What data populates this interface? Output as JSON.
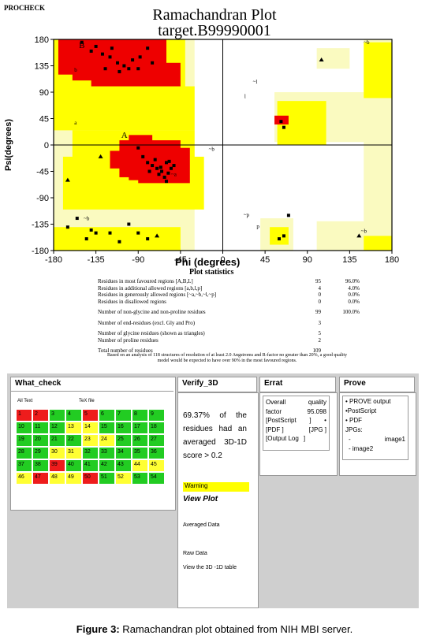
{
  "header": {
    "program": "PROCHECK",
    "title": "Ramachandran Plot",
    "subtitle": "target.B99990001"
  },
  "chart_data": {
    "type": "scatter",
    "title": "Ramachandran Plot",
    "subtitle": "target.B99990001",
    "xlabel": "Phi (degrees)",
    "ylabel": "Psi(degrees)",
    "xlim": [
      -180,
      180
    ],
    "ylim": [
      -180,
      180
    ],
    "xticks": [
      "-180",
      "-135",
      "-90",
      "-45",
      "0",
      "45",
      "90",
      "135",
      "180"
    ],
    "yticks": [
      "180",
      "135",
      "90",
      "45",
      "0",
      "-45",
      "-90",
      "-135",
      "-180"
    ],
    "colors": {
      "most_favoured": "#ee0000",
      "additional_allowed": "#ffff00",
      "generously_allowed": "#fafac0",
      "disallowed": "#ffffff",
      "points": "#000000"
    },
    "region_labels": [
      "B",
      "b",
      "a",
      "A",
      "~b",
      "~l",
      "l",
      "~a",
      "~p",
      "p",
      "~b",
      "~b",
      "~b"
    ],
    "regions": [
      {
        "type": "generous",
        "rects": [
          [
            -180,
            180,
            -30,
            -180
          ],
          [
            -180,
            180,
            -45,
            -165
          ],
          [
            55,
            90,
            160,
            5
          ],
          [
            40,
            -125,
            75,
            -180
          ],
          [
            150,
            180,
            180,
            -180
          ],
          [
            100,
            165,
            135,
            130
          ],
          [
            100,
            -130,
            180,
            -180
          ]
        ]
      },
      {
        "type": "allowed",
        "rects": [
          [
            -180,
            180,
            -40,
            90
          ],
          [
            -180,
            100,
            -30,
            25
          ],
          [
            -160,
            25,
            -30,
            -90
          ],
          [
            -170,
            -20,
            -20,
            -110
          ],
          [
            -180,
            -140,
            -45,
            -180
          ],
          [
            58,
            75,
            110,
            0
          ],
          [
            70,
            50,
            100,
            10
          ],
          [
            50,
            -140,
            70,
            -170
          ],
          [
            150,
            175,
            180,
            80
          ],
          [
            150,
            -155,
            180,
            -180
          ],
          [
            -180,
            -175,
            -45,
            -180
          ]
        ]
      },
      {
        "type": "favoured",
        "rects": [
          [
            -175,
            180,
            -60,
            120
          ],
          [
            -160,
            160,
            -60,
            110
          ],
          [
            -140,
            140,
            -45,
            100
          ],
          [
            -100,
            17,
            -75,
            -60
          ],
          [
            -110,
            8,
            -45,
            -55
          ],
          [
            -90,
            -5,
            -35,
            -65
          ],
          [
            -120,
            -10,
            -70,
            -40
          ],
          [
            55,
            50,
            70,
            35
          ]
        ]
      }
    ],
    "points_most_favoured_AB": [
      [
        -150,
        175
      ],
      [
        -140,
        160
      ],
      [
        -135,
        168
      ],
      [
        -128,
        155
      ],
      [
        -120,
        150
      ],
      [
        -118,
        165
      ],
      [
        -112,
        140
      ],
      [
        -105,
        135
      ],
      [
        -100,
        130
      ],
      [
        -96,
        145
      ],
      [
        -90,
        130
      ],
      [
        -88,
        150
      ],
      [
        -80,
        165
      ],
      [
        -75,
        140
      ],
      [
        -110,
        125
      ],
      [
        -125,
        130
      ],
      [
        -60,
        -30
      ],
      [
        -65,
        -45
      ],
      [
        -70,
        -40
      ],
      [
        -58,
        -48
      ],
      [
        -75,
        -35
      ],
      [
        -55,
        -40
      ],
      [
        -62,
        -55
      ],
      [
        -68,
        -50
      ],
      [
        -72,
        -25
      ],
      [
        -80,
        -30
      ],
      [
        -85,
        -20
      ],
      [
        -52,
        -35
      ],
      [
        -60,
        -62
      ],
      [
        -90,
        -5
      ],
      [
        -78,
        -45
      ],
      [
        -66,
        -38
      ],
      [
        -57,
        -28
      ]
    ],
    "points_other": [
      [
        -140,
        -145
      ],
      [
        -120,
        -150
      ],
      [
        -100,
        -135
      ],
      [
        -90,
        -150
      ],
      [
        -80,
        -160
      ],
      [
        -145,
        -160
      ],
      [
        -165,
        -140
      ],
      [
        -110,
        -165
      ],
      [
        60,
        -160
      ],
      [
        65,
        -155
      ],
      [
        70,
        -120
      ],
      [
        62,
        40
      ],
      [
        65,
        30
      ],
      [
        -135,
        -150
      ],
      [
        -155,
        -125
      ]
    ],
    "glycine_triangles": [
      [
        105,
        145
      ],
      [
        145,
        -155
      ],
      [
        -70,
        -155
      ],
      [
        -130,
        -20
      ],
      [
        -165,
        -60
      ]
    ],
    "stats": {
      "title": "Plot statistics",
      "rows": [
        {
          "label": "Residues in most favoured regions  [A,B,L]",
          "count": "95",
          "percent": "96.0%"
        },
        {
          "label": "Residues in additional allowed regions  [a,b,l,p]",
          "count": "4",
          "percent": "4.0%"
        },
        {
          "label": "Residues in generously allowed regions  [~a,~b,~l,~p]",
          "count": "0",
          "percent": "0.0%"
        },
        {
          "label": "Residues in disallowed regions",
          "count": "0",
          "percent": "0.0%"
        }
      ],
      "non_gly": {
        "label": "Number of non-glycine and non-proline residues",
        "count": "99",
        "percent": "100.0%"
      },
      "end_res": {
        "label": "Number of end-residues (excl. Gly and Pro)",
        "count": "3"
      },
      "gly": {
        "label": "Number of glycine residues (shown as triangles)",
        "count": "5"
      },
      "pro": {
        "label": "Number of proline residues",
        "count": "2"
      },
      "total": {
        "label": "Total number of residues",
        "count": "109"
      },
      "footnote": "Based on an analysis of 118 structures of resolution of at least 2.0 Angstroms and R-factor no greater than 20%, a good quality model would be expected to have over 90% in the most favoured regions."
    }
  },
  "what_check": {
    "title": "What_check",
    "tabs": [
      "All Text",
      "TeX file"
    ],
    "cells": [
      {
        "n": "1",
        "c": "#ee1c1c"
      },
      {
        "n": "2",
        "c": "#ee1c1c"
      },
      {
        "n": "3",
        "c": "#22cc22"
      },
      {
        "n": "4",
        "c": "#22cc22"
      },
      {
        "n": "5",
        "c": "#ee1c1c"
      },
      {
        "n": "6",
        "c": "#22cc22"
      },
      {
        "n": "7",
        "c": "#22cc22"
      },
      {
        "n": "8",
        "c": "#22cc22"
      },
      {
        "n": "9",
        "c": "#22cc22"
      },
      {
        "n": "10",
        "c": "#22cc22"
      },
      {
        "n": "11",
        "c": "#22cc22"
      },
      {
        "n": "12",
        "c": "#22cc22"
      },
      {
        "n": "13",
        "c": "#ffff33"
      },
      {
        "n": "14",
        "c": "#ffff33"
      },
      {
        "n": "15",
        "c": "#22cc22"
      },
      {
        "n": "16",
        "c": "#22cc22"
      },
      {
        "n": "17",
        "c": "#22cc22"
      },
      {
        "n": "18",
        "c": "#22cc22"
      },
      {
        "n": "19",
        "c": "#22cc22"
      },
      {
        "n": "20",
        "c": "#22cc22"
      },
      {
        "n": "21",
        "c": "#22cc22"
      },
      {
        "n": "22",
        "c": "#22cc22"
      },
      {
        "n": "23",
        "c": "#ffff33"
      },
      {
        "n": "24",
        "c": "#ffff33"
      },
      {
        "n": "25",
        "c": "#22cc22"
      },
      {
        "n": "26",
        "c": "#22cc22"
      },
      {
        "n": "27",
        "c": "#22cc22"
      },
      {
        "n": "28",
        "c": "#22cc22"
      },
      {
        "n": "29",
        "c": "#22cc22"
      },
      {
        "n": "30",
        "c": "#ffff33"
      },
      {
        "n": "31",
        "c": "#ffff33"
      },
      {
        "n": "32",
        "c": "#22cc22"
      },
      {
        "n": "33",
        "c": "#22cc22"
      },
      {
        "n": "34",
        "c": "#22cc22"
      },
      {
        "n": "35",
        "c": "#22cc22"
      },
      {
        "n": "36",
        "c": "#22cc22"
      },
      {
        "n": "37",
        "c": "#22cc22"
      },
      {
        "n": "38",
        "c": "#22cc22"
      },
      {
        "n": "39",
        "c": "#ee1c1c"
      },
      {
        "n": "40",
        "c": "#22cc22"
      },
      {
        "n": "41",
        "c": "#22cc22"
      },
      {
        "n": "42",
        "c": "#22cc22"
      },
      {
        "n": "43",
        "c": "#22cc22"
      },
      {
        "n": "44",
        "c": "#ffff33"
      },
      {
        "n": "45",
        "c": "#ffff33"
      },
      {
        "n": "46",
        "c": "#ffff33"
      },
      {
        "n": "47",
        "c": "#ee1c1c"
      },
      {
        "n": "48",
        "c": "#ffff33"
      },
      {
        "n": "49",
        "c": "#ffff33"
      },
      {
        "n": "50",
        "c": "#ee1c1c"
      },
      {
        "n": "51",
        "c": "#22cc22"
      },
      {
        "n": "52",
        "c": "#ffff33"
      },
      {
        "n": "53",
        "c": "#22cc22"
      },
      {
        "n": "54",
        "c": "#22cc22"
      }
    ]
  },
  "verify3d": {
    "title": "Verify_3D",
    "result": "69.37% of the residues had an averaged 3D-1D score > 0.2",
    "warning": "Warning",
    "view_plot": "View Plot",
    "averaged_data": "Averaged Data",
    "raw_data": "Raw Data",
    "view_table": "View the 3D -1D table"
  },
  "errat": {
    "title": "Errat",
    "overall_label": "Overall",
    "quality_label": "quality",
    "factor_label": "factor",
    "factor_value": "95.098",
    "postscript": "[PostScript",
    "postscript_end": "]",
    "bullet": "•",
    "pdf": "[PDF ]",
    "jpg": "[JPG ]",
    "output_log": "[Output Log",
    "output_log_end": "]"
  },
  "prove": {
    "title": "Prove",
    "items": [
      "• PROVE output",
      "•PostScript",
      "• PDF"
    ],
    "jpgs_label": "JPGs:",
    "image1": "image1",
    "image2": "image2",
    "dash": "-"
  },
  "caption": {
    "label": "Figure 3:",
    "text": " Ramachandran plot obtained from NIH MBI server."
  }
}
